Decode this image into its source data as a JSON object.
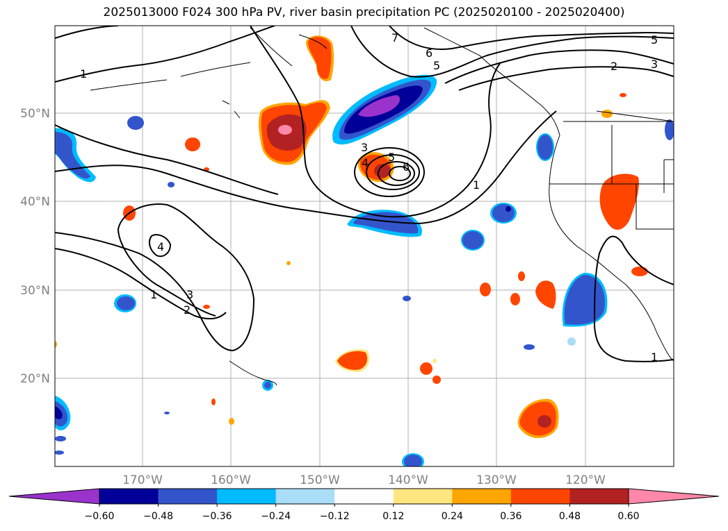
{
  "title": "2025013000 F024 300 hPa PV, river basin precipitation PC (2025020100 - 2025020400)",
  "map": {
    "lat_ticks": [
      "50°N",
      "40°N",
      "30°N",
      "20°N"
    ],
    "lon_ticks": [
      "170°W",
      "160°W",
      "150°W",
      "140°W",
      "130°W",
      "120°W"
    ],
    "contour_labels": [
      "1",
      "2",
      "3",
      "4",
      "5",
      "6",
      "7"
    ]
  },
  "colorbar": {
    "ticks": [
      "−0.60",
      "−0.48",
      "−0.36",
      "−0.24",
      "−0.12",
      "0.12",
      "0.24",
      "0.36",
      "0.48",
      "0.60"
    ],
    "colors": [
      "#9933cc",
      "#000099",
      "#3355cc",
      "#00bbff",
      "#aaddf7",
      "#ffffff",
      "#ffe680",
      "#ffa500",
      "#ff4500",
      "#b22222",
      "#ff88aa"
    ]
  }
}
